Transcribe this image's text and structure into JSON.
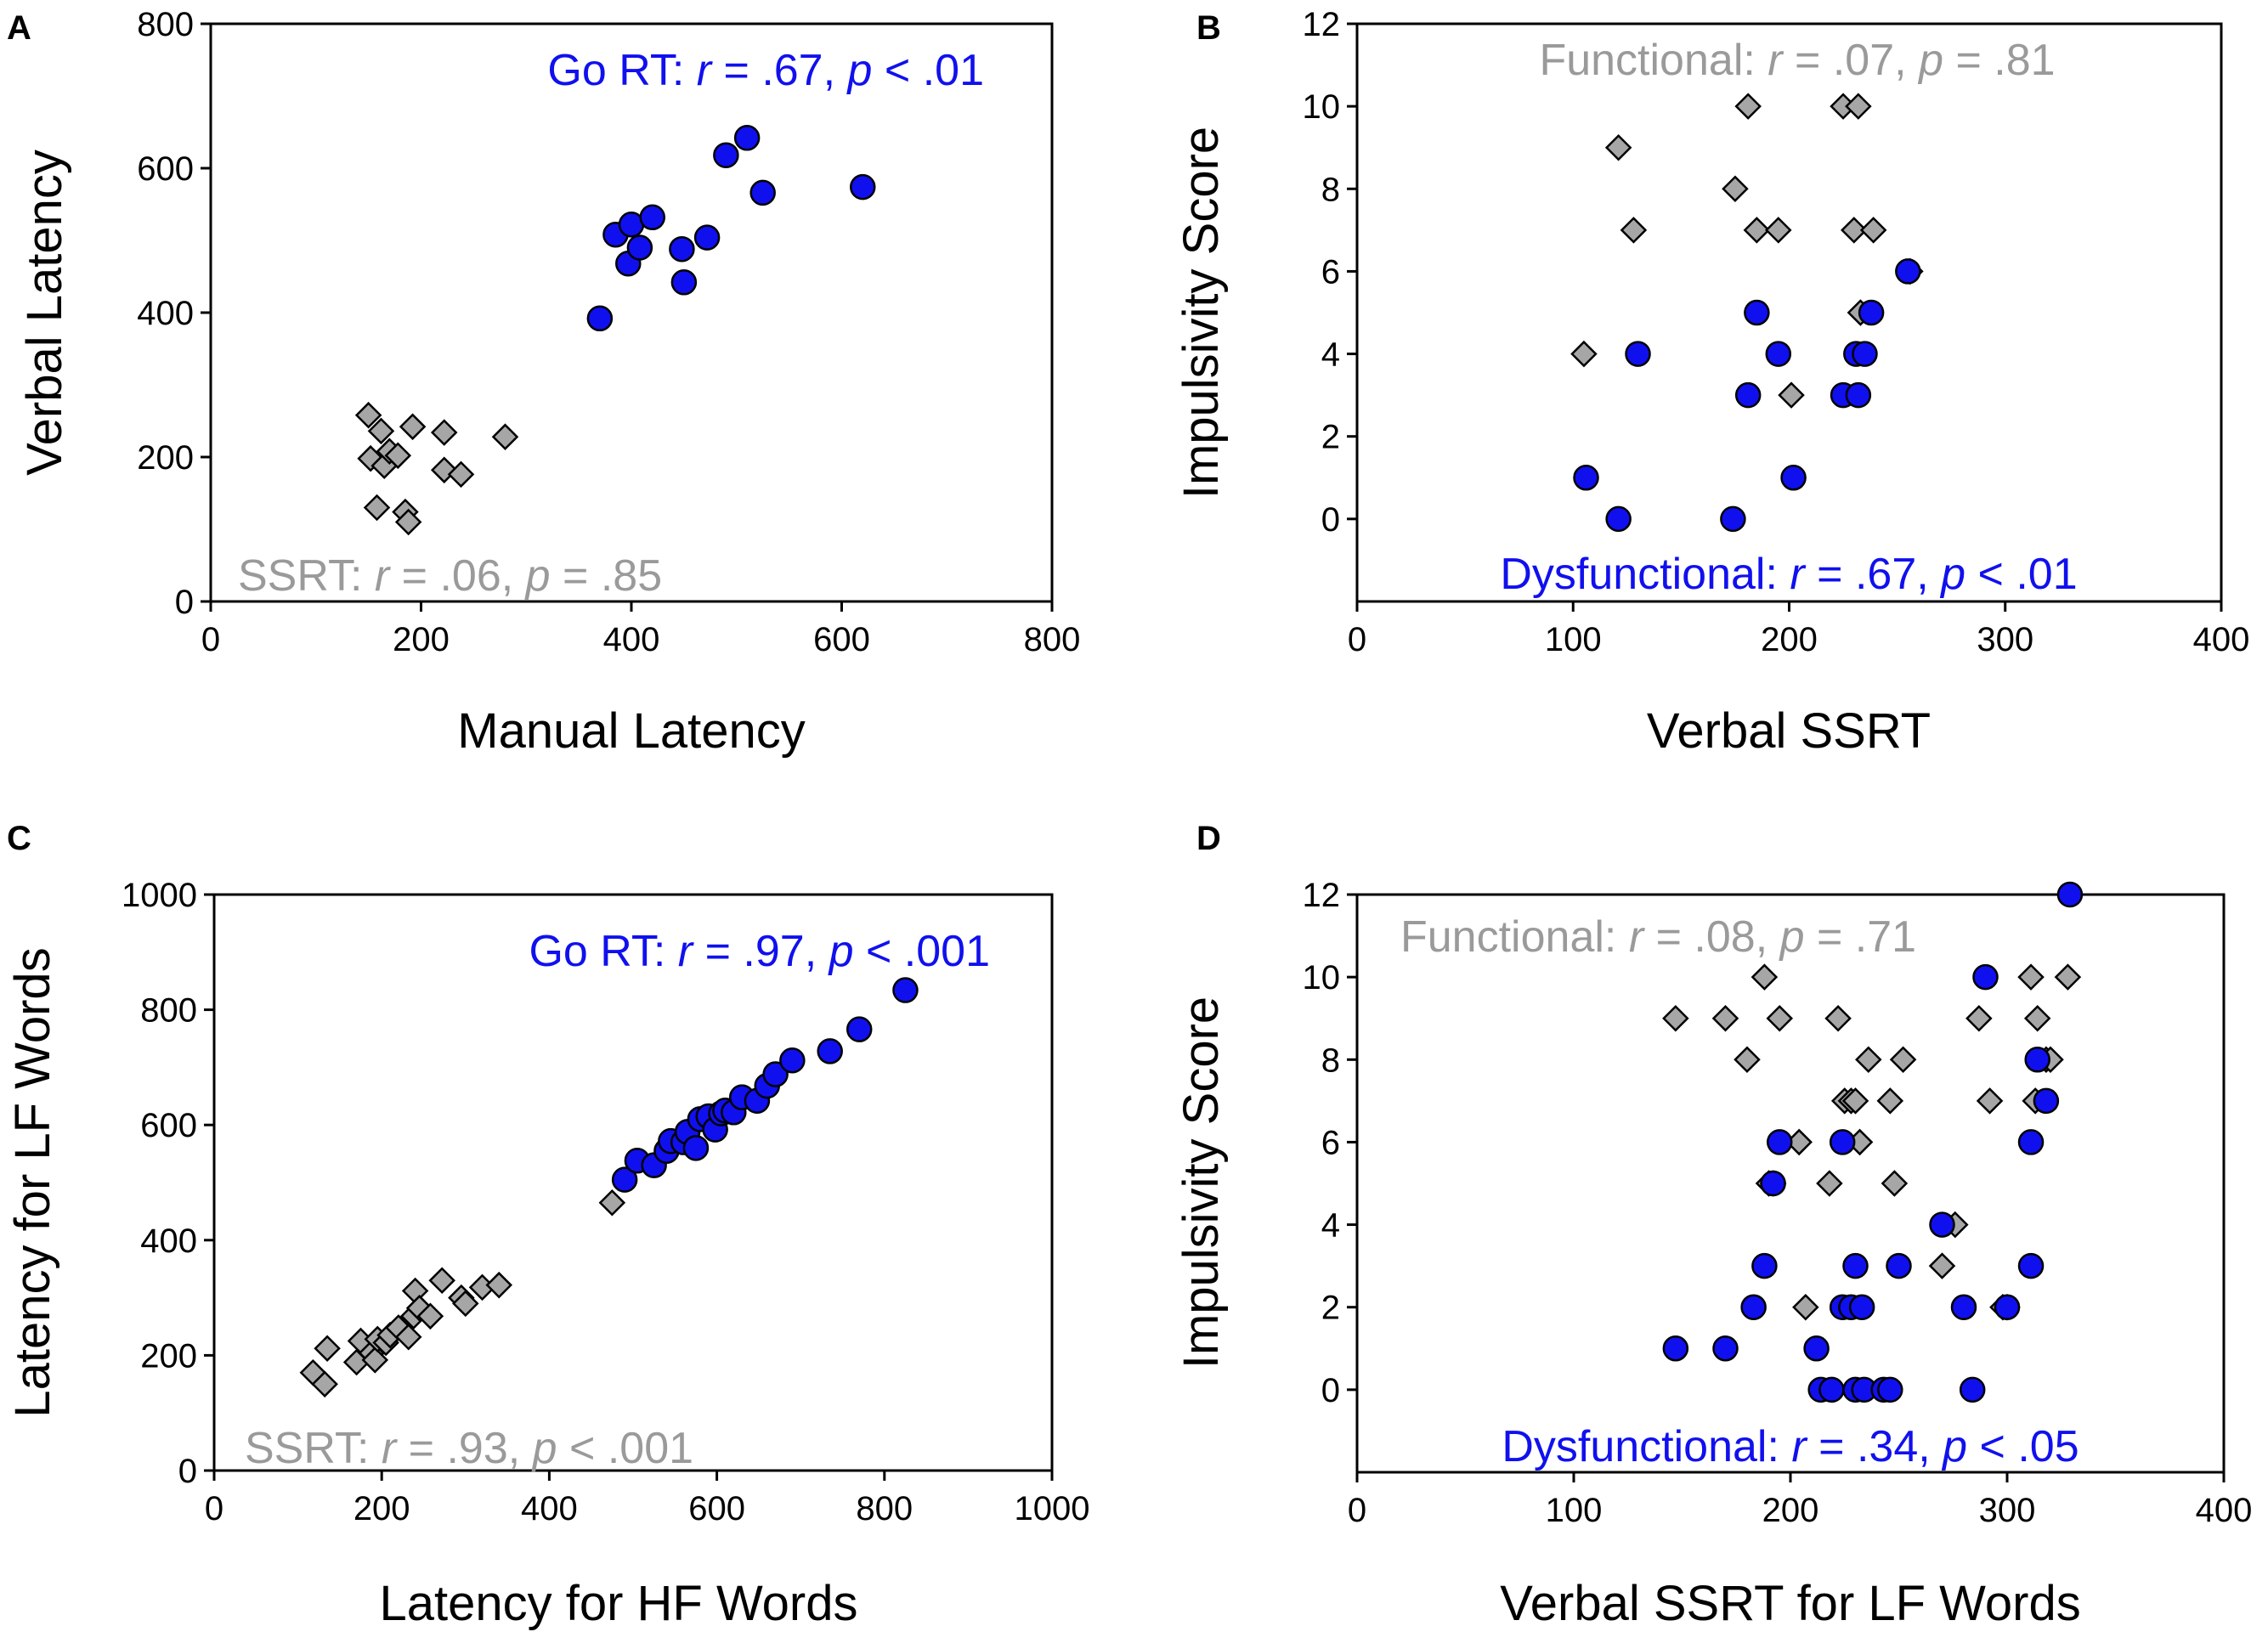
{
  "colors": {
    "go": "#1010EE",
    "ssrt": "#A6A6A6",
    "ssrt_text": "#9A9A9A",
    "edge": "#000000"
  },
  "chart_data": [
    {
      "panel": "A",
      "type": "scatter",
      "xlabel": "Manual Latency",
      "ylabel": "Verbal Latency",
      "xlim": [
        0,
        800
      ],
      "ylim": [
        0,
        800
      ],
      "xticks": [
        0,
        200,
        400,
        600,
        800
      ],
      "yticks": [
        0,
        200,
        400,
        600,
        800
      ],
      "series": [
        {
          "name": "Go RT",
          "marker": "circle",
          "color": "go",
          "points": [
            [
              370,
              392
            ],
            [
              385,
              508
            ],
            [
              397,
              468
            ],
            [
              400,
              522
            ],
            [
              408,
              490
            ],
            [
              420,
              532
            ],
            [
              448,
              488
            ],
            [
              450,
              442
            ],
            [
              472,
              504
            ],
            [
              490,
              618
            ],
            [
              510,
              642
            ],
            [
              525,
              566
            ],
            [
              620,
              574
            ]
          ]
        },
        {
          "name": "SSRT",
          "marker": "diamond",
          "color": "ssrt",
          "points": [
            [
              150,
              258
            ],
            [
              152,
              198
            ],
            [
              158,
              130
            ],
            [
              162,
              236
            ],
            [
              165,
              188
            ],
            [
              170,
              208
            ],
            [
              178,
              202
            ],
            [
              185,
              124
            ],
            [
              188,
              110
            ],
            [
              192,
              242
            ],
            [
              222,
              234
            ],
            [
              222,
              182
            ],
            [
              238,
              176
            ],
            [
              280,
              228
            ]
          ]
        }
      ],
      "annotations": [
        {
          "series": "Go RT",
          "label": "Go RT: ",
          "r": ".67",
          "p": "< .01",
          "position": "top-right"
        },
        {
          "series": "SSRT",
          "label": "SSRT: ",
          "r": ".06",
          "p": "= .85",
          "position": "bottom-left"
        }
      ]
    },
    {
      "panel": "B",
      "type": "scatter",
      "xlabel": "Verbal SSRT",
      "ylabel": "Impulsivity Score",
      "xlim": [
        0,
        400
      ],
      "ylim": [
        -2,
        12
      ],
      "xticks": [
        0,
        100,
        200,
        300,
        400
      ],
      "yticks": [
        0,
        2,
        4,
        6,
        8,
        10,
        12
      ],
      "series": [
        {
          "name": "Functional",
          "marker": "diamond",
          "color": "ssrt",
          "points": [
            [
              105,
              4
            ],
            [
              121,
              9
            ],
            [
              128,
              7
            ],
            [
              175,
              8
            ],
            [
              181,
              10
            ],
            [
              185,
              7
            ],
            [
              195,
              7
            ],
            [
              201,
              3
            ],
            [
              225,
              10
            ],
            [
              232,
              10
            ],
            [
              230,
              7
            ],
            [
              233,
              5
            ],
            [
              239,
              7
            ],
            [
              256,
              6
            ]
          ]
        },
        {
          "name": "Dysfunctional",
          "marker": "circle",
          "color": "go",
          "points": [
            [
              106,
              1
            ],
            [
              121,
              0
            ],
            [
              130,
              4
            ],
            [
              174,
              0
            ],
            [
              181,
              3
            ],
            [
              185,
              5
            ],
            [
              195,
              4
            ],
            [
              202,
              1
            ],
            [
              225,
              3
            ],
            [
              231,
              4
            ],
            [
              232,
              3
            ],
            [
              235,
              4
            ],
            [
              238,
              5
            ],
            [
              255,
              6
            ]
          ]
        }
      ],
      "annotations": [
        {
          "series": "Functional",
          "label": "Functional: ",
          "r": ".07",
          "p": "= .81",
          "position": "top-center"
        },
        {
          "series": "Dysfunctional",
          "label": "Dysfunctional: ",
          "r": ".67",
          "p": "< .01",
          "position": "bottom-center"
        }
      ]
    },
    {
      "panel": "C",
      "type": "scatter",
      "xlabel": "Latency for HF Words",
      "ylabel": "Latency for LF Words",
      "xlim": [
        0,
        1000
      ],
      "ylim": [
        0,
        1000
      ],
      "xticks": [
        0,
        200,
        400,
        600,
        800,
        1000
      ],
      "yticks": [
        0,
        200,
        400,
        600,
        800,
        1000
      ],
      "series": [
        {
          "name": "Go RT",
          "marker": "circle",
          "color": "go",
          "points": [
            [
              490,
              505
            ],
            [
              505,
              538
            ],
            [
              525,
              530
            ],
            [
              540,
              555
            ],
            [
              545,
              572
            ],
            [
              560,
              570
            ],
            [
              565,
              588
            ],
            [
              575,
              560
            ],
            [
              580,
              610
            ],
            [
              590,
              615
            ],
            [
              598,
              592
            ],
            [
              605,
              620
            ],
            [
              610,
              625
            ],
            [
              620,
              622
            ],
            [
              630,
              648
            ],
            [
              648,
              642
            ],
            [
              660,
              668
            ],
            [
              670,
              688
            ],
            [
              690,
              712
            ],
            [
              735,
              728
            ],
            [
              770,
              766
            ],
            [
              825,
              834
            ]
          ]
        },
        {
          "name": "SSRT",
          "marker": "diamond",
          "color": "ssrt",
          "points": [
            [
              118,
              170
            ],
            [
              132,
              150
            ],
            [
              135,
              212
            ],
            [
              170,
              188
            ],
            [
              175,
              225
            ],
            [
              188,
              204
            ],
            [
              192,
              192
            ],
            [
              195,
              228
            ],
            [
              205,
              222
            ],
            [
              210,
              235
            ],
            [
              220,
              248
            ],
            [
              232,
              232
            ],
            [
              238,
              268
            ],
            [
              240,
              312
            ],
            [
              245,
              282
            ],
            [
              258,
              268
            ],
            [
              272,
              330
            ],
            [
              295,
              300
            ],
            [
              300,
              290
            ],
            [
              320,
              318
            ],
            [
              340,
              322
            ],
            [
              475,
              465
            ]
          ]
        }
      ],
      "annotations": [
        {
          "series": "Go RT",
          "label": "Go RT: ",
          "r": ".97",
          "p": "< .001",
          "position": "top-right"
        },
        {
          "series": "SSRT",
          "label": "SSRT: ",
          "r": ".93",
          "p": "< .001",
          "position": "bottom-left"
        }
      ]
    },
    {
      "panel": "D",
      "type": "scatter",
      "xlabel": "Verbal SSRT for LF Words",
      "ylabel": "Impulsivity Score",
      "xlim": [
        0,
        400
      ],
      "ylim": [
        -2,
        12
      ],
      "xticks": [
        0,
        100,
        200,
        300,
        400
      ],
      "yticks": [
        0,
        2,
        4,
        6,
        8,
        10,
        12
      ],
      "series": [
        {
          "name": "Functional",
          "marker": "diamond",
          "color": "ssrt",
          "points": [
            [
              147,
              9
            ],
            [
              170,
              9
            ],
            [
              180,
              8
            ],
            [
              188,
              10
            ],
            [
              190,
              5
            ],
            [
              192,
              5
            ],
            [
              195,
              9
            ],
            [
              204,
              6
            ],
            [
              207,
              2
            ],
            [
              218,
              5
            ],
            [
              222,
              9
            ],
            [
              225,
              7
            ],
            [
              228,
              7
            ],
            [
              230,
              7
            ],
            [
              232,
              6
            ],
            [
              236,
              8
            ],
            [
              246,
              7
            ],
            [
              248,
              5
            ],
            [
              252,
              8
            ],
            [
              270,
              3
            ],
            [
              276,
              4
            ],
            [
              287,
              9
            ],
            [
              292,
              7
            ],
            [
              298,
              2
            ],
            [
              300,
              2
            ],
            [
              311,
              10
            ],
            [
              313,
              7
            ],
            [
              314,
              9
            ],
            [
              318,
              8
            ],
            [
              320,
              8
            ],
            [
              328,
              10
            ]
          ]
        },
        {
          "name": "Dysfunctional",
          "marker": "circle",
          "color": "go",
          "points": [
            [
              147,
              1
            ],
            [
              170,
              1
            ],
            [
              183,
              2
            ],
            [
              188,
              3
            ],
            [
              192,
              5
            ],
            [
              195,
              6
            ],
            [
              212,
              1
            ],
            [
              214,
              0
            ],
            [
              219,
              0
            ],
            [
              224,
              6
            ],
            [
              224,
              2
            ],
            [
              228,
              2
            ],
            [
              230,
              0
            ],
            [
              230,
              3
            ],
            [
              233,
              2
            ],
            [
              234,
              0
            ],
            [
              243,
              0
            ],
            [
              246,
              0
            ],
            [
              250,
              3
            ],
            [
              270,
              4
            ],
            [
              280,
              2
            ],
            [
              284,
              0
            ],
            [
              290,
              10
            ],
            [
              300,
              2
            ],
            [
              311,
              6
            ],
            [
              311,
              3
            ],
            [
              314,
              8
            ],
            [
              318,
              7
            ],
            [
              329,
              12
            ]
          ]
        }
      ],
      "annotations": [
        {
          "series": "Functional",
          "label": "Functional: ",
          "r": ".08",
          "p": "= .71",
          "position": "top-left"
        },
        {
          "series": "Dysfunctional",
          "label": "Dysfunctional: ",
          "r": " = .34",
          "p": "< .05",
          "position": "bottom-center"
        }
      ]
    }
  ]
}
